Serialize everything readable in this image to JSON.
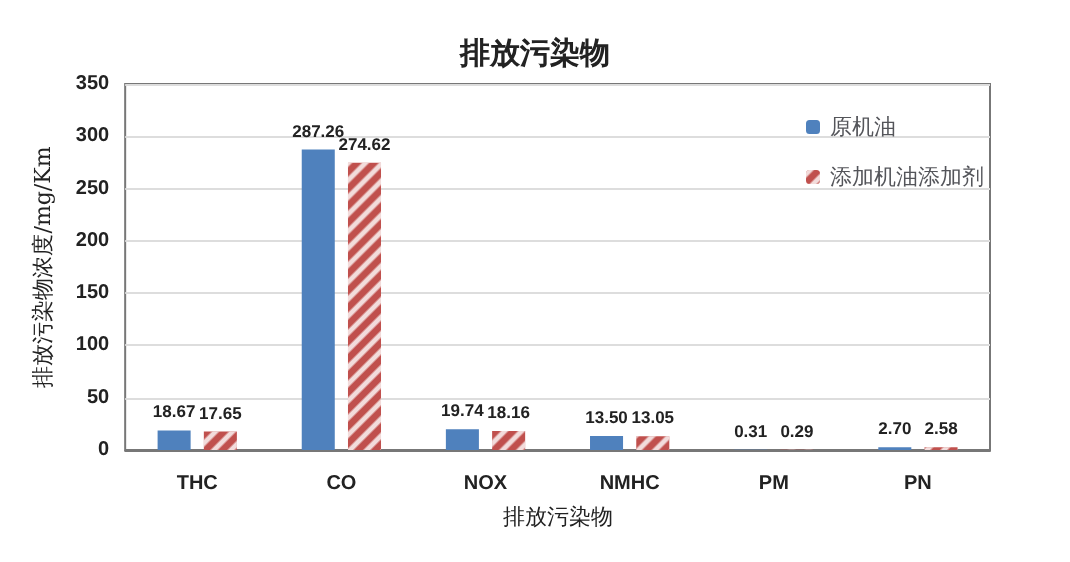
{
  "chart_data": {
    "type": "bar",
    "title": "排放污染物",
    "xlabel": "排放污染物",
    "ylabel": "排放污染物浓度/mg/Km",
    "categories": [
      "THC",
      "CO",
      "NOX",
      "NMHC",
      "PM",
      "PN"
    ],
    "series": [
      {
        "name": "原机油",
        "color": "#4f81bd",
        "values": [
          18.67,
          287.26,
          19.74,
          13.5,
          0.31,
          2.7
        ],
        "value_labels": [
          "18.67",
          "287.26",
          "19.74",
          "13.50",
          "0.31",
          "2.70"
        ]
      },
      {
        "name": "添加机油添加剂",
        "color": "#c0504d",
        "values": [
          17.65,
          274.62,
          18.16,
          13.05,
          0.29,
          2.58
        ],
        "value_labels": [
          "17.65",
          "274.62",
          "18.16",
          "13.05",
          "0.29",
          "2.58"
        ]
      }
    ],
    "ylim": [
      0,
      350
    ],
    "yticks": [
      0,
      50,
      100,
      150,
      200,
      250,
      300,
      350
    ],
    "grid": "y",
    "legend": "top right"
  }
}
